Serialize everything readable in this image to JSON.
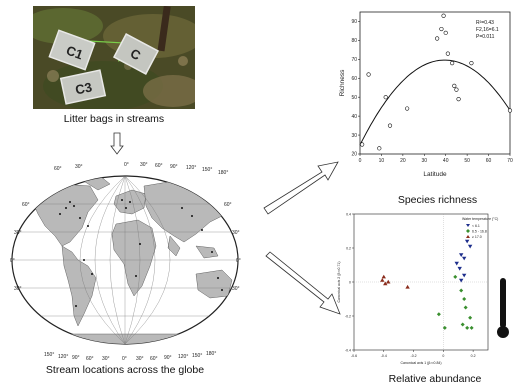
{
  "photo": {
    "caption": "Litter bags in streams",
    "bag_labels": [
      "C1",
      "C",
      "C3"
    ]
  },
  "map": {
    "caption": "Stream locations across the globe",
    "degree_labels_top": [
      "60°",
      "30°",
      "0°",
      "30°",
      "60°",
      "90°",
      "120°",
      "150°",
      "180°"
    ],
    "degree_labels_bottom": [
      "150°",
      "120°",
      "90°",
      "60°",
      "30°",
      "0°",
      "30°",
      "60°",
      "90°",
      "120°",
      "150°",
      "180°"
    ],
    "lat_labels_left": [
      "60°",
      "30°",
      "0°",
      "30°"
    ],
    "lat_labels_right": [
      "60°",
      "30°",
      "0°",
      "30°"
    ]
  },
  "richness": {
    "caption": "Species richness",
    "stats": [
      "R²=0.43",
      "F2,16=6.1",
      "P=0.011"
    ]
  },
  "abundance": {
    "caption": "Relative abundance",
    "legend_title": "Water temperature (°C)",
    "legend_items": [
      "< 6.1",
      "6.5 - 16.8",
      "≥ 17.0"
    ],
    "colors": {
      "cold": "#1d2e8c",
      "mid": "#3a8f2f",
      "warm": "#8b2c1c"
    }
  },
  "chart_data": [
    {
      "type": "scatter",
      "title": "Species richness",
      "xlabel": "Latitude",
      "ylabel": "Richness",
      "xticks": [
        "0",
        "10",
        "20",
        "30",
        "40",
        "50",
        "60",
        "70"
      ],
      "yticks": [
        "20",
        "30",
        "40",
        "50",
        "60",
        "70",
        "80",
        "90"
      ],
      "xlim": [
        0,
        70
      ],
      "ylim": [
        20,
        95
      ],
      "x": [
        1,
        4,
        9,
        12,
        14,
        22,
        36,
        38,
        39,
        40,
        41,
        43,
        44,
        45,
        46,
        52,
        70
      ],
      "y": [
        25,
        62,
        23,
        50,
        35,
        44,
        81,
        86,
        93,
        84,
        73,
        68,
        56,
        54,
        49,
        68,
        43
      ],
      "fit": "quadratic"
    },
    {
      "type": "scatter",
      "title": "Relative abundance",
      "xlabel": "Canonical axis 1 (β²=0.84)",
      "ylabel": "Canonical axis 2 (β²=0.71)",
      "xticks": [
        "-0.6",
        "-0.4",
        "-0.2",
        "0",
        "0.2"
      ],
      "yticks": [
        "-0.4",
        "-0.2",
        "0",
        "0.2",
        "0.4"
      ],
      "xlim": [
        -0.6,
        0.3
      ],
      "ylim": [
        -0.4,
        0.4
      ],
      "series": [
        {
          "name": "< 6.1",
          "x": [
            0.16,
            0.18,
            0.12,
            0.14,
            0.09,
            0.11,
            0.14,
            0.12
          ],
          "y": [
            0.24,
            0.21,
            0.16,
            0.14,
            0.11,
            0.08,
            0.04,
            0.01
          ]
        },
        {
          "name": "6.5 - 16.8",
          "x": [
            0.12,
            0.14,
            0.15,
            0.18,
            0.13,
            0.16,
            0.19,
            -0.03,
            0.01,
            0.08
          ],
          "y": [
            -0.05,
            -0.1,
            -0.15,
            -0.21,
            -0.25,
            -0.27,
            -0.27,
            -0.19,
            -0.27,
            0.03
          ]
        },
        {
          "name": "≥ 17.0",
          "x": [
            -0.41,
            -0.4,
            -0.39,
            -0.37,
            -0.24
          ],
          "y": [
            0.01,
            0.03,
            -0.01,
            0.0,
            -0.03
          ]
        }
      ]
    }
  ]
}
